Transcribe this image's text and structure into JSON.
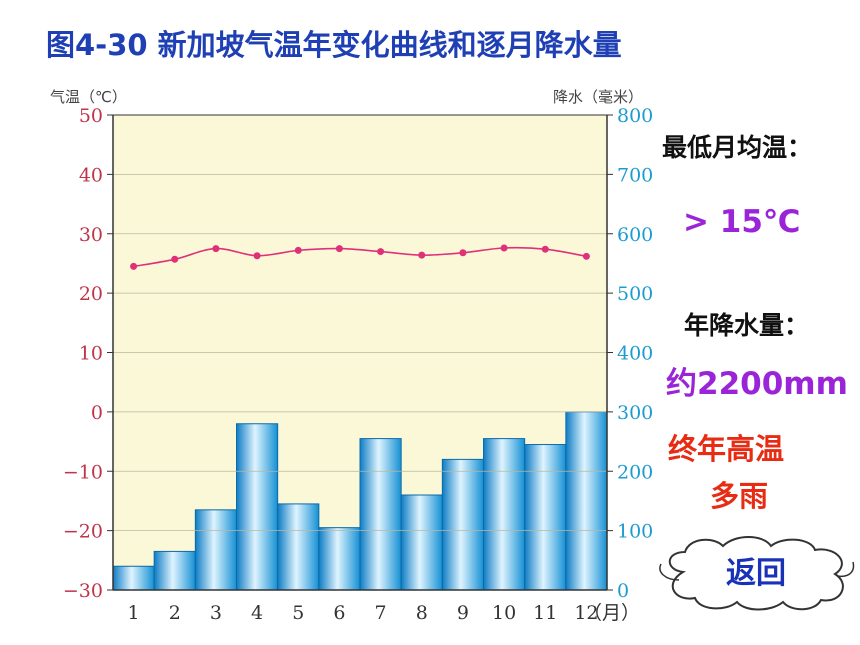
{
  "title": "图4-30  新加坡气温年变化曲线和逐月降水量",
  "side": {
    "min_temp_label": "最低月均温：",
    "min_temp_value": "> 15℃",
    "annual_precip_label": "年降水量：",
    "annual_precip_value": "约2200mm",
    "climate_line1": "终年高温",
    "climate_line2": "多雨"
  },
  "back_button": {
    "label": "返回"
  },
  "colors": {
    "title": "#1f3fb4",
    "temp_line": "#e0307a",
    "bar": "#2aa7e2",
    "plot_bg": "#fbf8d8",
    "left_axis": "#c0344a",
    "right_axis": "#1b9bd0",
    "purple": "#9a24d8",
    "red": "#e82c14"
  },
  "chart_data": {
    "type": "bar+line",
    "x_label": "（月）",
    "categories": [
      "1",
      "2",
      "3",
      "4",
      "5",
      "6",
      "7",
      "8",
      "9",
      "10",
      "11",
      "12"
    ],
    "left_axis": {
      "label": "气温（℃）",
      "min": -30,
      "max": 50,
      "ticks": [
        "50",
        "40",
        "30",
        "20",
        "10",
        "0",
        "−10",
        "−20",
        "−30"
      ]
    },
    "right_axis": {
      "label": "降水（毫米）",
      "min": 0,
      "max": 800,
      "ticks": [
        "800",
        "700",
        "600",
        "500",
        "400",
        "300",
        "200",
        "100",
        "0"
      ]
    },
    "precipitation": [
      40,
      65,
      135,
      280,
      145,
      105,
      255,
      160,
      220,
      255,
      245,
      300
    ],
    "temperature": [
      24.5,
      25.7,
      27.5,
      26.3,
      27.2,
      27.5,
      27.0,
      26.4,
      26.8,
      27.6,
      27.4,
      26.2
    ]
  }
}
